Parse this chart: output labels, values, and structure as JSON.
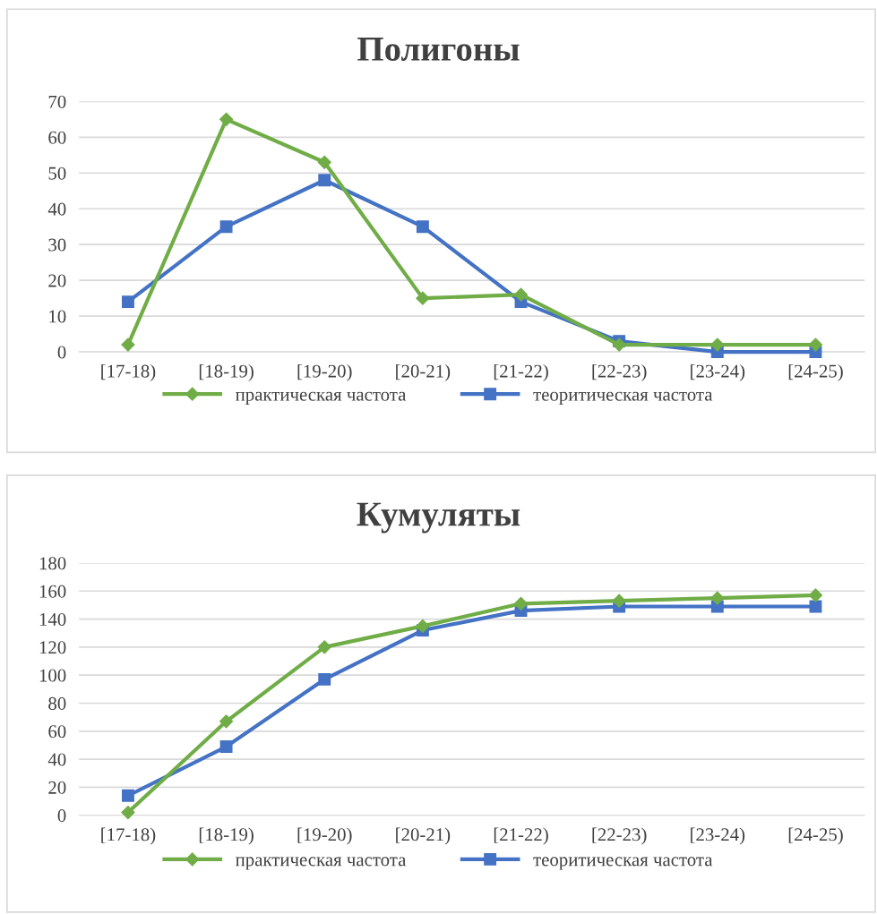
{
  "chart_data": [
    {
      "type": "line",
      "title": "Полигоны",
      "categories": [
        "[17-18)",
        "[18-19)",
        "[19-20)",
        "[20-21)",
        "[21-22)",
        "[22-23)",
        "[23-24)",
        "[24-25)"
      ],
      "ylim": [
        0,
        70
      ],
      "yticks": [
        0,
        10,
        20,
        30,
        40,
        50,
        60,
        70
      ],
      "grid": "y",
      "legend": "bottom",
      "series": [
        {
          "name": "практическая частота",
          "color": "#70ad47",
          "marker": "diamond",
          "values": [
            2,
            65,
            53,
            15,
            16,
            2,
            2,
            2
          ]
        },
        {
          "name": "теоритическая частота",
          "color": "#4472c4",
          "marker": "square",
          "values": [
            14,
            35,
            48,
            35,
            14,
            3,
            0,
            0
          ]
        }
      ]
    },
    {
      "type": "line",
      "title": "Кумуляты",
      "categories": [
        "[17-18)",
        "[18-19)",
        "[19-20)",
        "[20-21)",
        "[21-22)",
        "[22-23)",
        "[23-24)",
        "[24-25)"
      ],
      "ylim": [
        0,
        180
      ],
      "yticks": [
        0,
        20,
        40,
        60,
        80,
        100,
        120,
        140,
        160,
        180
      ],
      "grid": "y",
      "legend": "bottom",
      "series": [
        {
          "name": "практическая частота",
          "color": "#70ad47",
          "marker": "diamond",
          "values": [
            2,
            67,
            120,
            135,
            151,
            153,
            155,
            157
          ]
        },
        {
          "name": "теоритическая частота",
          "color": "#4472c4",
          "marker": "square",
          "values": [
            14,
            49,
            97,
            132,
            146,
            149,
            149,
            149
          ]
        }
      ]
    }
  ]
}
